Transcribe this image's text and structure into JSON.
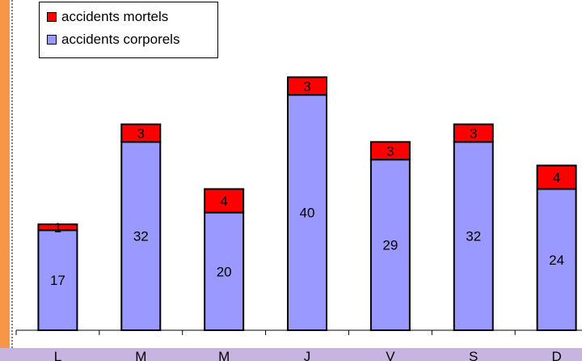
{
  "chart_data": {
    "type": "bar",
    "stacked": true,
    "categories": [
      "L",
      "M",
      "M",
      "J",
      "V",
      "S",
      "D"
    ],
    "series": [
      {
        "name": "accidents corporels",
        "values": [
          17,
          32,
          20,
          40,
          29,
          32,
          24
        ],
        "color": "#9999ff"
      },
      {
        "name": "accidents mortels",
        "values": [
          1,
          3,
          4,
          3,
          3,
          3,
          4
        ],
        "color": "#ff0000"
      }
    ],
    "title": "",
    "xlabel": "",
    "ylabel": "",
    "ylim": [
      0,
      45
    ],
    "grid": false,
    "legend_position": "top-left",
    "data_labels": true
  },
  "colors": {
    "page_background": "#ffffff",
    "left_strip": "#f79646",
    "bottom_strip": "#c8b4e0"
  }
}
